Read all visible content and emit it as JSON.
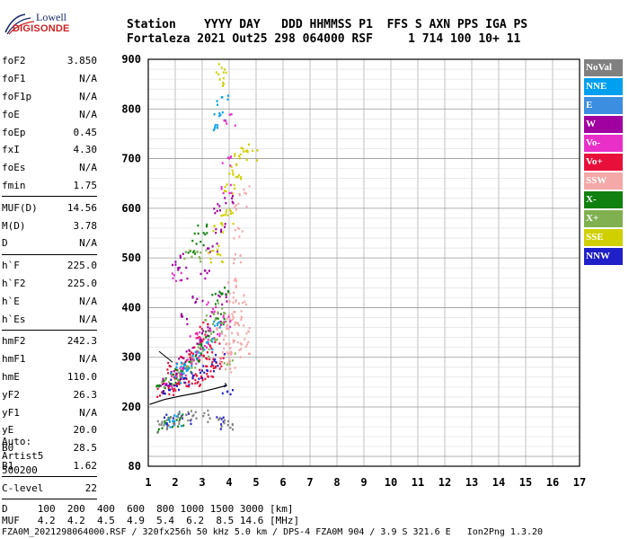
{
  "logo": {
    "line1": "Lowell",
    "line2": "DIGISONDE"
  },
  "header": {
    "row1": "Station    YYYY DAY   DDD HHMMSS P1  FFS S AXN PPS IGA PS",
    "row2": "Fortaleza 2021 Out25 298 064000 RSF     1 714 100 10+ 11"
  },
  "params": [
    {
      "label": "foF2",
      "value": "3.850"
    },
    {
      "label": "foF1",
      "value": "N/A"
    },
    {
      "label": "foF1p",
      "value": "N/A"
    },
    {
      "label": "foE",
      "value": "N/A"
    },
    {
      "label": "foEp",
      "value": "0.45"
    },
    {
      "label": "fxI",
      "value": "4.30"
    },
    {
      "label": "foEs",
      "value": "N/A"
    },
    {
      "label": "fmin",
      "value": "1.75",
      "sep": true
    },
    {
      "label": "MUF(D)",
      "value": "14.56"
    },
    {
      "label": "M(D)",
      "value": "3.78"
    },
    {
      "label": "D",
      "value": "N/A",
      "sep": true
    },
    {
      "label": "h`F",
      "value": "225.0"
    },
    {
      "label": "h`F2",
      "value": "225.0"
    },
    {
      "label": "h`E",
      "value": "N/A"
    },
    {
      "label": "h`Es",
      "value": "N/A",
      "sep": true
    },
    {
      "label": "hmF2",
      "value": "242.3"
    },
    {
      "label": "hmF1",
      "value": "N/A"
    },
    {
      "label": "hmE",
      "value": "110.0"
    },
    {
      "label": "yF2",
      "value": "26.3"
    },
    {
      "label": "yF1",
      "value": "N/A"
    },
    {
      "label": "yE",
      "value": "20.0"
    },
    {
      "label": "B0",
      "value": "28.5"
    },
    {
      "label": "B1",
      "value": "1.62",
      "sep": true
    },
    {
      "label": "C-level",
      "value": "22",
      "sep": true
    }
  ],
  "auto": {
    "line1": "Auto:",
    "line2": "Artist5",
    "line3": "500200"
  },
  "legend": [
    {
      "label": "NoVal",
      "color": "#808080"
    },
    {
      "label": "NNE",
      "color": "#00a0f0"
    },
    {
      "label": "E",
      "color": "#3b8ee0"
    },
    {
      "label": "W",
      "color": "#a000a0"
    },
    {
      "label": "Vo-",
      "color": "#e830c8"
    },
    {
      "label": "Vo+",
      "color": "#e8103a"
    },
    {
      "label": "SSW",
      "color": "#f4a8a8"
    },
    {
      "label": "X-",
      "color": "#108010"
    },
    {
      "label": "X+",
      "color": "#80b050"
    },
    {
      "label": "SSE",
      "color": "#d0d000"
    },
    {
      "label": "NNW",
      "color": "#2020c8"
    }
  ],
  "footer": {
    "row1": "D     100  200  400  600  800 1000 1500 3000 [km]",
    "row2": "MUF   4.2  4.2  4.5  4.9  5.4  6.2  8.5 14.6 [MHz]",
    "row3": "FZA0M_2021298064000.RSF / 320fx256h 50 kHz 5.0 km / DPS-4 FZA0M 904 / 3.9 S 321.6 E   Ion2Png 1.3.20"
  },
  "chart_data": {
    "type": "scatter",
    "xlim": [
      1,
      17
    ],
    "ylim": [
      80,
      900
    ],
    "xticks": [
      1,
      2,
      3,
      4,
      5,
      6,
      7,
      8,
      9,
      10,
      11,
      12,
      13,
      14,
      15,
      16,
      17
    ],
    "yticks": [
      80,
      200,
      300,
      400,
      500,
      600,
      700,
      800,
      900
    ],
    "xlabel": "",
    "ylabel": "",
    "grid": true,
    "legend_position": "right",
    "series": [
      {
        "color": "#e8103a",
        "points": [
          [
            1.5,
            232
          ],
          [
            1.7,
            238
          ],
          [
            1.9,
            240
          ],
          [
            2.1,
            245
          ],
          [
            2.3,
            248
          ],
          [
            2.5,
            252
          ],
          [
            2.7,
            256
          ],
          [
            2.9,
            262
          ],
          [
            3.1,
            268
          ],
          [
            3.3,
            272
          ],
          [
            3.5,
            280
          ],
          [
            3.7,
            290
          ],
          [
            1.9,
            280
          ],
          [
            2.2,
            300
          ],
          [
            2.5,
            320
          ],
          [
            2.8,
            340
          ],
          [
            3.1,
            360
          ],
          [
            3.4,
            330
          ],
          [
            2.0,
            260
          ],
          [
            2.6,
            290
          ],
          [
            3.0,
            300
          ],
          [
            3.2,
            310
          ]
        ]
      },
      {
        "color": "#a000a0",
        "points": [
          [
            1.6,
            250
          ],
          [
            2.0,
            270
          ],
          [
            2.3,
            290
          ],
          [
            2.6,
            310
          ],
          [
            2.9,
            330
          ],
          [
            3.2,
            350
          ],
          [
            3.5,
            380
          ],
          [
            3.8,
            420
          ],
          [
            2.4,
            380
          ],
          [
            2.8,
            420
          ],
          [
            3.1,
            470
          ],
          [
            3.4,
            520
          ],
          [
            3.7,
            560
          ],
          [
            3.9,
            620
          ],
          [
            3.6,
            600
          ],
          [
            2.1,
            500
          ],
          [
            2.3,
            470
          ]
        ]
      },
      {
        "color": "#108010",
        "points": [
          [
            1.5,
            245
          ],
          [
            1.8,
            255
          ],
          [
            2.1,
            270
          ],
          [
            2.4,
            285
          ],
          [
            2.7,
            300
          ],
          [
            3.0,
            320
          ],
          [
            3.3,
            345
          ],
          [
            3.6,
            380
          ],
          [
            2.6,
            520
          ],
          [
            2.8,
            540
          ],
          [
            3.0,
            560
          ],
          [
            1.5,
            160
          ],
          [
            1.9,
            172
          ],
          [
            2.2,
            174
          ],
          [
            3.5,
            420
          ],
          [
            3.8,
            440
          ]
        ]
      },
      {
        "color": "#80b050",
        "points": [
          [
            1.7,
            248
          ],
          [
            2.0,
            262
          ],
          [
            2.3,
            278
          ],
          [
            2.6,
            292
          ],
          [
            3.0,
            310
          ],
          [
            3.4,
            338
          ],
          [
            3.8,
            365
          ],
          [
            4.0,
            300
          ],
          [
            2.5,
            510
          ],
          [
            2.9,
            505
          ],
          [
            3.3,
            380
          ],
          [
            3.6,
            400
          ]
        ]
      },
      {
        "color": "#f4a8a8",
        "points": [
          [
            3.8,
            300
          ],
          [
            3.9,
            320
          ],
          [
            4.0,
            340
          ],
          [
            4.1,
            360
          ],
          [
            4.2,
            380
          ],
          [
            4.3,
            400
          ],
          [
            4.4,
            420
          ],
          [
            4.0,
            280
          ],
          [
            4.2,
            310
          ],
          [
            4.4,
            340
          ],
          [
            4.5,
            360
          ],
          [
            4.1,
            450
          ],
          [
            4.2,
            500
          ],
          [
            4.3,
            550
          ],
          [
            4.4,
            600
          ],
          [
            4.5,
            640
          ],
          [
            3.9,
            380
          ],
          [
            3.7,
            350
          ],
          [
            4.6,
            320
          ],
          [
            4.0,
            420
          ]
        ]
      },
      {
        "color": "#d0d000",
        "points": [
          [
            3.4,
            520
          ],
          [
            3.6,
            560
          ],
          [
            3.8,
            600
          ],
          [
            4.0,
            640
          ],
          [
            4.2,
            680
          ],
          [
            4.4,
            700
          ],
          [
            4.6,
            720
          ],
          [
            4.8,
            710
          ],
          [
            3.5,
            500
          ],
          [
            3.9,
            580
          ],
          [
            4.3,
            660
          ],
          [
            3.7,
            880
          ],
          [
            3.8,
            860
          ]
        ]
      },
      {
        "color": "#00a0f0",
        "points": [
          [
            2.0,
            258
          ],
          [
            2.4,
            280
          ],
          [
            2.8,
            305
          ],
          [
            3.2,
            330
          ],
          [
            3.6,
            370
          ],
          [
            2.2,
            280
          ],
          [
            3.5,
            760
          ],
          [
            3.6,
            790
          ],
          [
            3.7,
            820
          ],
          [
            1.7,
            168
          ],
          [
            2.1,
            176
          ]
        ]
      },
      {
        "color": "#e830c8",
        "points": [
          [
            1.8,
            252
          ],
          [
            2.2,
            268
          ],
          [
            2.6,
            290
          ],
          [
            3.0,
            318
          ],
          [
            3.4,
            345
          ],
          [
            3.8,
            375
          ],
          [
            2.7,
            350
          ],
          [
            3.3,
            400
          ],
          [
            3.9,
            640
          ],
          [
            3.9,
            700
          ],
          [
            4.0,
            780
          ],
          [
            2.0,
            460
          ]
        ]
      },
      {
        "color": "#2020c8",
        "points": [
          [
            1.6,
            236
          ],
          [
            2.0,
            246
          ],
          [
            2.4,
            258
          ],
          [
            2.8,
            270
          ],
          [
            3.2,
            282
          ],
          [
            3.6,
            296
          ],
          [
            3.9,
            240
          ],
          [
            3.6,
            170
          ],
          [
            1.8,
            176
          ],
          [
            2.4,
            178
          ]
        ]
      },
      {
        "color": "#808080",
        "points": [
          [
            1.6,
            170
          ],
          [
            1.9,
            178
          ],
          [
            2.3,
            180
          ],
          [
            2.7,
            182
          ],
          [
            3.1,
            184
          ],
          [
            1.5,
            162
          ],
          [
            3.8,
            168
          ],
          [
            4.1,
            168
          ]
        ]
      }
    ]
  }
}
